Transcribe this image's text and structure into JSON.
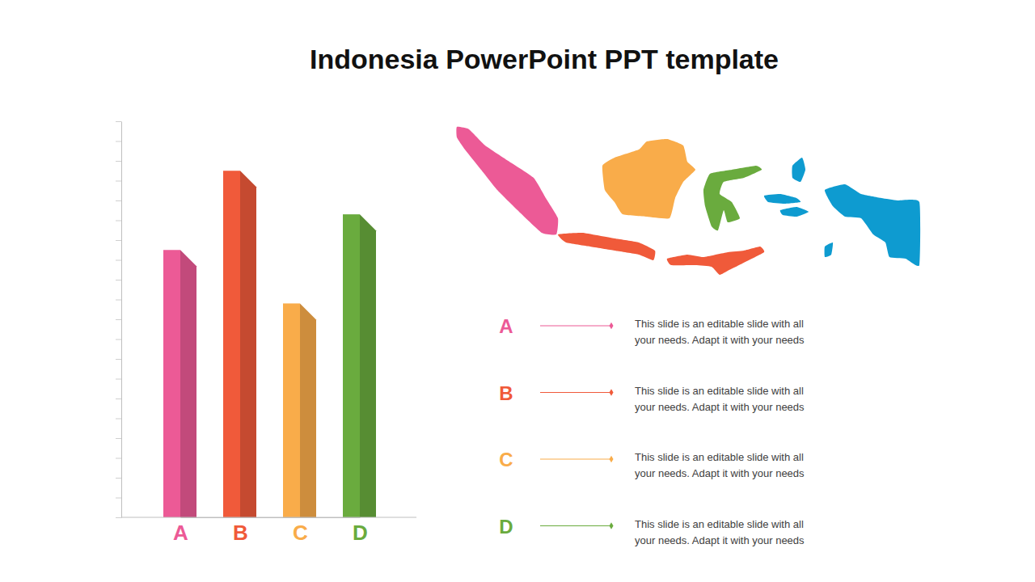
{
  "chart_data": {
    "type": "bar",
    "title": "Indonesia PowerPoint PPT template",
    "categories": [
      "A",
      "B",
      "C",
      "D"
    ],
    "values": [
      13.5,
      17.5,
      10.8,
      15.3
    ],
    "colors": [
      "#ec5a96",
      "#f05a3a",
      "#f9ac4a",
      "#6aab3e"
    ],
    "ylim": [
      0,
      20
    ],
    "yticks": [
      0,
      1,
      2,
      3,
      4,
      5,
      6,
      7,
      8,
      9,
      10,
      11,
      12,
      13,
      14,
      15,
      16,
      17,
      18,
      19,
      20
    ],
    "tick_labels": "x",
    "annotations": [
      [
        "This slide is an editable slide with all",
        "your needs. Adapt it with your needs"
      ],
      [
        "This slide is an editable slide with all",
        "your needs. Adapt it with your needs"
      ],
      [
        "This slide is an editable slide with all",
        "your needs. Adapt it with your needs"
      ],
      [
        "This slide is an editable slide with all",
        "your needs. Adapt it with your needs"
      ]
    ]
  }
}
